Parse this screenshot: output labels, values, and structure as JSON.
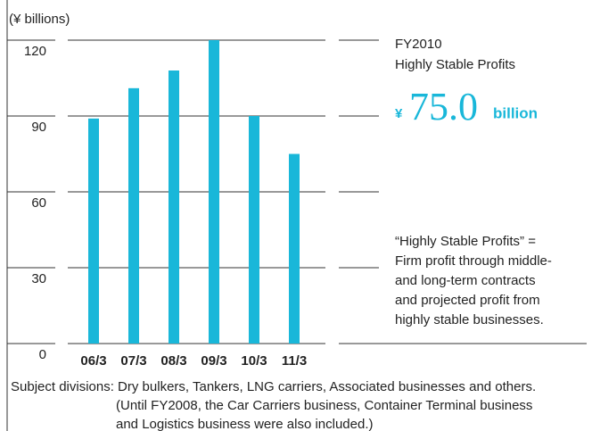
{
  "chart_data": {
    "type": "bar",
    "ylabel": "(¥ billions)",
    "categories": [
      "06/3",
      "07/3",
      "08/3",
      "09/3",
      "10/3",
      "11/3"
    ],
    "values": [
      89,
      101,
      108,
      120,
      90,
      75
    ],
    "color": "#19b7d9",
    "ylim": [
      0,
      120
    ],
    "yticks": [
      0,
      30,
      60,
      90,
      120
    ],
    "grid": true,
    "annotations": {
      "period": "FY2010",
      "heading": "Highly Stable Profits",
      "currency": "¥",
      "amount": "75.0",
      "unit": "billion",
      "description": [
        "“Highly Stable Profits” =",
        "Firm profit through middle-",
        "and long-term contracts",
        "and projected profit from",
        "highly stable businesses."
      ]
    },
    "footnote": [
      "Subject divisions: Dry bulkers, Tankers, LNG carriers, Associated businesses and others.",
      "(Until FY2008, the Car Carriers business, Container Terminal business",
      "and Logistics business were also included.)"
    ]
  }
}
